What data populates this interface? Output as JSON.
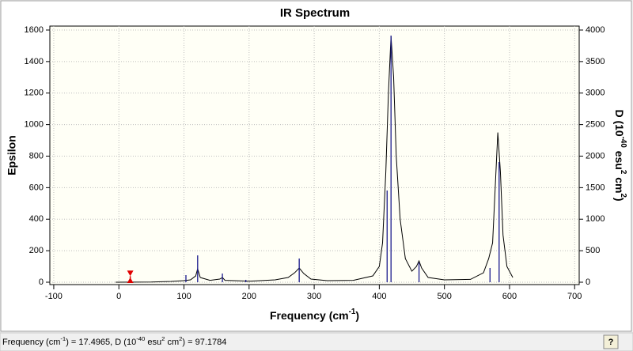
{
  "chart_data": {
    "type": "ir-spectrum",
    "title": "IR Spectrum",
    "x_label": [
      "Frequency (cm",
      "-1",
      ")"
    ],
    "y_label": "Epsilon",
    "y2_label": [
      "D (10",
      "-40",
      " esu",
      "2",
      " cm",
      "2",
      ")"
    ],
    "xlim": [
      -106,
      707
    ],
    "xticks": [
      -100,
      0,
      100,
      200,
      300,
      400,
      500,
      600,
      700
    ],
    "ylim": [
      -15,
      1625
    ],
    "yticks": [
      0,
      200,
      400,
      600,
      800,
      1000,
      1200,
      1400,
      1600
    ],
    "y2lim": [
      -37.5,
      4062.5
    ],
    "y2ticks": [
      0,
      500,
      1000,
      1500,
      2000,
      2500,
      3000,
      3500,
      4000
    ],
    "grid": true,
    "spectrum": {
      "color": "#000000",
      "x": [
        -5,
        50,
        80,
        100,
        110,
        118,
        121,
        125,
        140,
        155,
        159,
        163,
        190,
        200,
        240,
        260,
        270,
        277,
        284,
        295,
        320,
        360,
        390,
        400,
        405,
        410,
        414,
        418,
        422,
        426,
        432,
        440,
        450,
        457,
        461,
        465,
        475,
        500,
        540,
        560,
        568,
        574,
        578,
        582,
        586,
        590,
        596,
        605
      ],
      "values": [
        0,
        1,
        5,
        10,
        15,
        40,
        85,
        30,
        12,
        20,
        30,
        12,
        8,
        6,
        15,
        30,
        60,
        90,
        55,
        20,
        10,
        12,
        40,
        100,
        250,
        700,
        1200,
        1560,
        1300,
        800,
        400,
        150,
        70,
        100,
        135,
        90,
        30,
        15,
        18,
        60,
        150,
        250,
        600,
        950,
        700,
        300,
        100,
        30
      ]
    },
    "sticks": {
      "axis": "y2",
      "color": "#1a1a8c",
      "x": [
        103,
        121,
        159,
        195,
        277,
        412,
        418,
        461,
        570,
        584
      ],
      "values": [
        113,
        426,
        138,
        38,
        376,
        1455,
        3912,
        313,
        226,
        1906
      ]
    },
    "cursor": {
      "color": "#e00000",
      "freq": 17.4965,
      "d": 97.1784
    },
    "status_bar": {
      "freq_label": [
        "Frequency (cm",
        "-1",
        ") = "
      ],
      "d_label": [
        ", D (10",
        "-40",
        " esu",
        "2",
        " cm",
        "2",
        ") = "
      ]
    }
  }
}
